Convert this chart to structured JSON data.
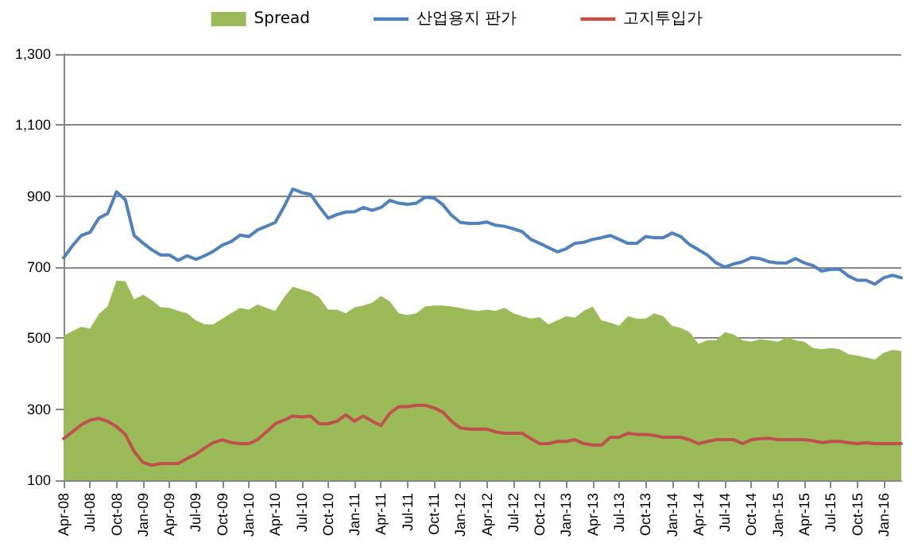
{
  "chart_data": {
    "type": "line",
    "categories": [
      "Apr-08",
      null,
      null,
      "Jul-08",
      null,
      null,
      "Oct-08",
      null,
      null,
      "Jan-09",
      null,
      null,
      "Apr-09",
      null,
      null,
      "Jul-09",
      null,
      null,
      "Oct-09",
      null,
      null,
      "Jan-10",
      null,
      null,
      "Apr-10",
      null,
      null,
      "Jul-10",
      null,
      null,
      "Oct-10",
      null,
      null,
      "Jan-11",
      null,
      null,
      "Apr-11",
      null,
      null,
      "Jul-11",
      null,
      null,
      "Oct-11",
      null,
      null,
      "Jan-12",
      null,
      null,
      "Apr-12",
      null,
      null,
      "Jul-12",
      null,
      null,
      "Oct-12",
      null,
      null,
      "Jan-13",
      null,
      null,
      "Apr-13",
      null,
      null,
      "Jul-13",
      null,
      null,
      "Oct-13",
      null,
      null,
      "Jan-14",
      null,
      null,
      "Apr-14",
      null,
      null,
      "Jul-14",
      null,
      null,
      "Oct-14",
      null,
      null,
      "Jan-15",
      null,
      null,
      "Apr-15",
      null,
      null,
      "Jul-15",
      null,
      null,
      "Oct-15",
      null,
      null,
      "Jan-16",
      null,
      null
    ],
    "series": [
      {
        "name": "Spread",
        "type": "area",
        "color": "#9bbb59",
        "values": [
          507,
          520,
          532,
          527,
          568,
          590,
          662,
          661,
          609,
          622,
          607,
          587,
          585,
          577,
          570,
          550,
          539,
          539,
          555,
          570,
          585,
          580,
          595,
          585,
          577,
          615,
          645,
          637,
          630,
          615,
          580,
          580,
          570,
          587,
          592,
          600,
          619,
          604,
          570,
          565,
          570,
          589,
          592,
          592,
          589,
          585,
          580,
          577,
          580,
          577,
          585,
          570,
          562,
          555,
          559,
          539,
          550,
          562,
          558,
          577,
          589,
          550,
          544,
          535,
          562,
          555,
          555,
          570,
          562,
          535,
          529,
          517,
          484,
          494,
          494,
          517,
          510,
          494,
          490,
          497,
          494,
          490,
          502,
          494,
          490,
          472,
          469,
          472,
          469,
          455,
          451,
          446,
          440,
          459,
          467,
          464
        ]
      },
      {
        "name": "산업용지 판가",
        "type": "line",
        "color": "#4f81bd",
        "values": [
          726,
          760,
          789,
          798,
          838,
          851,
          912,
          890,
          789,
          768,
          749,
          734,
          734,
          719,
          732,
          722,
          732,
          745,
          762,
          772,
          790,
          786,
          805,
          815,
          826,
          870,
          920,
          910,
          905,
          870,
          838,
          848,
          855,
          856,
          868,
          860,
          868,
          888,
          880,
          877,
          880,
          897,
          895,
          876,
          846,
          826,
          823,
          823,
          827,
          818,
          815,
          808,
          800,
          778,
          767,
          755,
          743,
          752,
          767,
          770,
          778,
          783,
          789,
          778,
          767,
          767,
          786,
          783,
          783,
          796,
          786,
          763,
          749,
          734,
          712,
          700,
          709,
          715,
          727,
          724,
          715,
          712,
          712,
          724,
          712,
          704,
          689,
          694,
          694,
          675,
          663,
          663,
          652,
          670,
          677,
          670
        ]
      },
      {
        "name": "고지투입가",
        "type": "line",
        "color": "#c0504d",
        "values": [
          217,
          236,
          256,
          269,
          274,
          266,
          251,
          229,
          181,
          150,
          142,
          147,
          147,
          147,
          161,
          173,
          191,
          206,
          214,
          206,
          203,
          203,
          214,
          236,
          259,
          269,
          281,
          278,
          281,
          259,
          259,
          266,
          284,
          266,
          281,
          266,
          254,
          289,
          307,
          307,
          311,
          311,
          304,
          292,
          266,
          247,
          244,
          244,
          244,
          236,
          232,
          232,
          232,
          217,
          203,
          203,
          209,
          209,
          214,
          203,
          199,
          199,
          221,
          221,
          232,
          229,
          229,
          226,
          221,
          221,
          221,
          214,
          203,
          209,
          214,
          214,
          214,
          203,
          214,
          217,
          218,
          214,
          214,
          214,
          214,
          211,
          206,
          209,
          209,
          206,
          203,
          206,
          203,
          203,
          203,
          203
        ]
      }
    ],
    "ylim": [
      100,
      1300
    ],
    "yticks": [
      100,
      300,
      500,
      700,
      900,
      {
        "value": 1100,
        "label": "1,100"
      },
      {
        "value": 1300,
        "label": "1,300"
      }
    ],
    "grid": "y",
    "legend": "top",
    "marker": "none",
    "line_style": "solid"
  }
}
